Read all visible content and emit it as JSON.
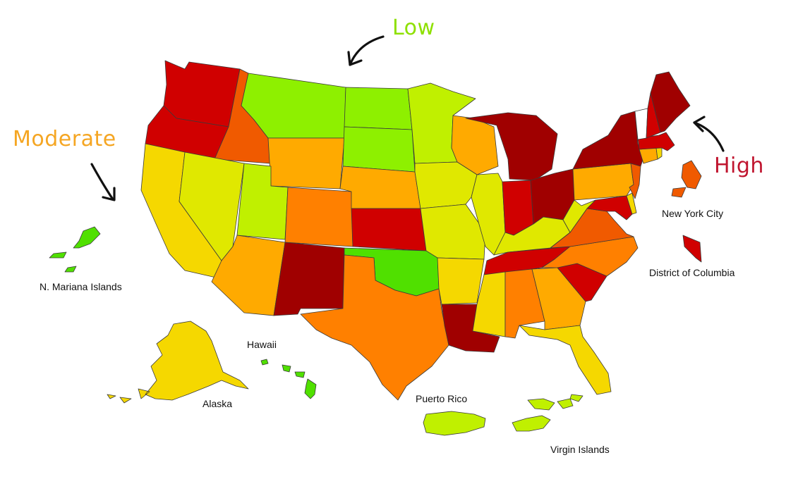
{
  "legend": {
    "low": {
      "label": "Low",
      "color": "#8ee000"
    },
    "moderate": {
      "label": "Moderate",
      "color": "#f5a623"
    },
    "high": {
      "label": "High",
      "color": "#c0152f"
    }
  },
  "territories": {
    "n_mariana": "N. Mariana Islands",
    "hawaii": "Hawaii",
    "alaska": "Alaska",
    "puerto_rico": "Puerto Rico",
    "virgin_islands": "Virgin Islands",
    "nyc": "New York City",
    "dc": "District of Columbia"
  },
  "palette": {
    "dark_red": "#a00000",
    "red": "#d00000",
    "red_orange": "#f05a00",
    "orange": "#ff8000",
    "amber": "#ffaa00",
    "yellow": "#f5d800",
    "yellow_green": "#e0e800",
    "lime": "#c0f000",
    "green": "#8ef000",
    "bright_green": "#50e000"
  },
  "states": [
    {
      "name": "Washington",
      "level": "red"
    },
    {
      "name": "Oregon",
      "level": "red"
    },
    {
      "name": "Idaho",
      "level": "red_orange"
    },
    {
      "name": "Montana",
      "level": "green"
    },
    {
      "name": "Wyoming",
      "level": "amber"
    },
    {
      "name": "North Dakota",
      "level": "green"
    },
    {
      "name": "South Dakota",
      "level": "green"
    },
    {
      "name": "Minnesota",
      "level": "lime"
    },
    {
      "name": "Wisconsin",
      "level": "amber"
    },
    {
      "name": "Michigan",
      "level": "dark_red"
    },
    {
      "name": "California",
      "level": "yellow"
    },
    {
      "name": "Nevada",
      "level": "yellow_green"
    },
    {
      "name": "Utah",
      "level": "lime"
    },
    {
      "name": "Colorado",
      "level": "orange"
    },
    {
      "name": "Arizona",
      "level": "amber"
    },
    {
      "name": "New Mexico",
      "level": "dark_red"
    },
    {
      "name": "Nebraska",
      "level": "amber"
    },
    {
      "name": "Kansas",
      "level": "red"
    },
    {
      "name": "Oklahoma",
      "level": "bright_green"
    },
    {
      "name": "Texas",
      "level": "orange"
    },
    {
      "name": "Iowa",
      "level": "yellow_green"
    },
    {
      "name": "Missouri",
      "level": "yellow_green"
    },
    {
      "name": "Arkansas",
      "level": "yellow"
    },
    {
      "name": "Louisiana",
      "level": "dark_red"
    },
    {
      "name": "Illinois",
      "level": "yellow_green"
    },
    {
      "name": "Indiana",
      "level": "red"
    },
    {
      "name": "Ohio",
      "level": "dark_red"
    },
    {
      "name": "Kentucky",
      "level": "yellow_green"
    },
    {
      "name": "Tennessee",
      "level": "red"
    },
    {
      "name": "Mississippi",
      "level": "yellow"
    },
    {
      "name": "Alabama",
      "level": "orange"
    },
    {
      "name": "Georgia",
      "level": "amber"
    },
    {
      "name": "Florida",
      "level": "yellow"
    },
    {
      "name": "South Carolina",
      "level": "red"
    },
    {
      "name": "North Carolina",
      "level": "orange"
    },
    {
      "name": "Virginia",
      "level": "red_orange"
    },
    {
      "name": "West Virginia",
      "level": "yellow_green"
    },
    {
      "name": "Maryland",
      "level": "red"
    },
    {
      "name": "Delaware",
      "level": "yellow"
    },
    {
      "name": "Pennsylvania",
      "level": "amber"
    },
    {
      "name": "New Jersey",
      "level": "red_orange"
    },
    {
      "name": "New York",
      "level": "dark_red"
    },
    {
      "name": "Connecticut",
      "level": "amber"
    },
    {
      "name": "Rhode Island",
      "level": "yellow"
    },
    {
      "name": "Massachusetts",
      "level": "red"
    },
    {
      "name": "Vermont",
      "level": "white"
    },
    {
      "name": "New Hampshire",
      "level": "red"
    },
    {
      "name": "Maine",
      "level": "dark_red"
    },
    {
      "name": "Alaska",
      "level": "yellow"
    },
    {
      "name": "Hawaii",
      "level": "bright_green"
    },
    {
      "name": "Puerto Rico",
      "level": "lime"
    },
    {
      "name": "Virgin Islands",
      "level": "lime"
    },
    {
      "name": "N. Mariana Islands",
      "level": "bright_green"
    },
    {
      "name": "New York City",
      "level": "red_orange"
    },
    {
      "name": "District of Columbia",
      "level": "red"
    }
  ]
}
